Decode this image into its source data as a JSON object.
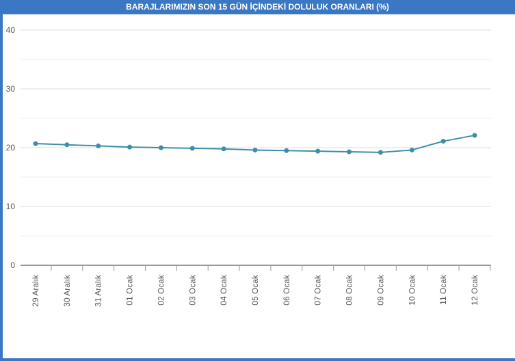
{
  "title": "BARAJLARIMIZIN SON 15 GÜN İÇİNDEKİ DOLULUK ORANLARI (%)",
  "colors": {
    "frame": "#3a78c3",
    "line": "#3d8fa8",
    "grid": "#dddddd",
    "axis": "#333333"
  },
  "chart_data": {
    "type": "line",
    "title": "BARAJLARIMIZIN SON 15 GÜN İÇİNDEKİ DOLULUK ORANLARI (%)",
    "xlabel": "",
    "ylabel": "",
    "ylim": [
      0,
      40
    ],
    "yticks": [
      0,
      10,
      20,
      30,
      40
    ],
    "grid": true,
    "legend": "none",
    "categories": [
      "29 Aralık",
      "30 Aralık",
      "31 Aralık",
      "01 Ocak",
      "02 Ocak",
      "03 Ocak",
      "04 Ocak",
      "05 Ocak",
      "06 Ocak",
      "07 Ocak",
      "08 Ocak",
      "09 Ocak",
      "10 Ocak",
      "11 Ocak",
      "12 Ocak"
    ],
    "values": [
      20.7,
      20.5,
      20.3,
      20.1,
      20.0,
      19.9,
      19.8,
      19.6,
      19.5,
      19.4,
      19.3,
      19.2,
      19.6,
      21.1,
      22.1
    ]
  }
}
